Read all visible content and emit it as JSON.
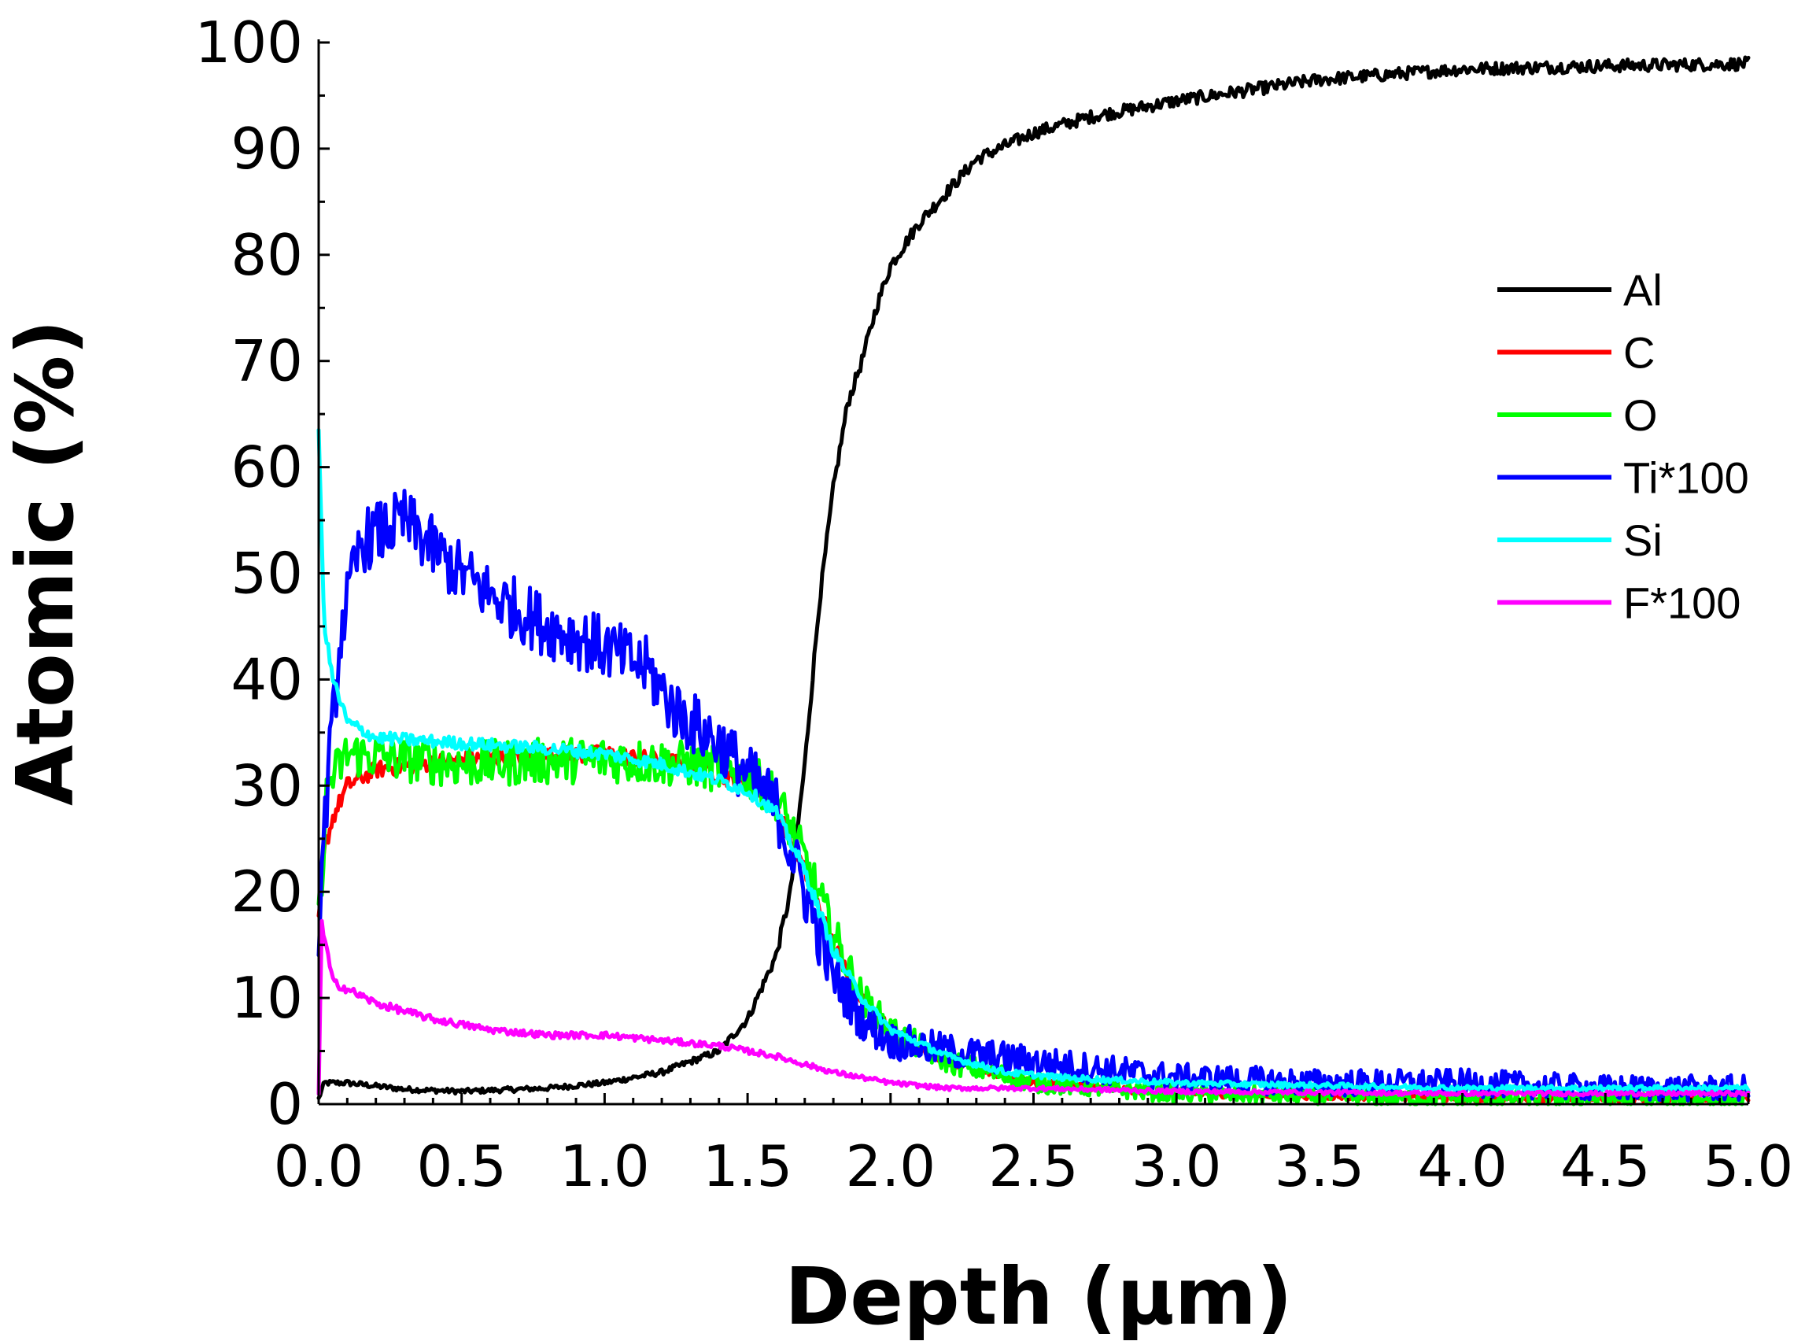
{
  "chart_data": {
    "type": "line",
    "xlabel": "Depth (μm)",
    "ylabel": "Atomic (%)",
    "xlim": [
      0.0,
      5.0
    ],
    "ylim": [
      0,
      100
    ],
    "x_ticks": [
      "0.0",
      "0.5",
      "1.0",
      "1.5",
      "2.0",
      "2.5",
      "3.0",
      "3.5",
      "4.0",
      "4.5",
      "5.0"
    ],
    "y_ticks": [
      "0",
      "10",
      "20",
      "30",
      "40",
      "50",
      "60",
      "70",
      "80",
      "90",
      "100"
    ],
    "x_tick_values": [
      0.0,
      0.5,
      1.0,
      1.5,
      2.0,
      2.5,
      3.0,
      3.5,
      4.0,
      4.5,
      5.0
    ],
    "y_tick_values": [
      0,
      10,
      20,
      30,
      40,
      50,
      60,
      70,
      80,
      90,
      100
    ],
    "legend_position": "right",
    "series": [
      {
        "name": "Al",
        "color": "#000000",
        "noise": 0.6,
        "points": [
          [
            0.0,
            0.5
          ],
          [
            0.02,
            2.0
          ],
          [
            0.1,
            2.0
          ],
          [
            0.3,
            1.4
          ],
          [
            0.5,
            1.2
          ],
          [
            0.8,
            1.5
          ],
          [
            1.0,
            2.0
          ],
          [
            1.2,
            3.0
          ],
          [
            1.4,
            5.0
          ],
          [
            1.5,
            8.0
          ],
          [
            1.6,
            14.0
          ],
          [
            1.65,
            20.0
          ],
          [
            1.7,
            32.0
          ],
          [
            1.75,
            47.0
          ],
          [
            1.8,
            58.0
          ],
          [
            1.85,
            66.0
          ],
          [
            1.9,
            70.0
          ],
          [
            1.95,
            75.0
          ],
          [
            2.0,
            79.0
          ],
          [
            2.1,
            83.0
          ],
          [
            2.2,
            86.0
          ],
          [
            2.3,
            89.0
          ],
          [
            2.5,
            91.5
          ],
          [
            2.7,
            93.0
          ],
          [
            3.0,
            94.5
          ],
          [
            3.5,
            96.5
          ],
          [
            4.0,
            97.5
          ],
          [
            4.5,
            97.8
          ],
          [
            5.0,
            98.0
          ]
        ]
      },
      {
        "name": "C",
        "color": "#ff0000",
        "noise": 0.8,
        "points": [
          [
            0.0,
            17.0
          ],
          [
            0.02,
            24.0
          ],
          [
            0.05,
            27.0
          ],
          [
            0.1,
            30.0
          ],
          [
            0.2,
            31.5
          ],
          [
            0.5,
            32.5
          ],
          [
            1.0,
            33.0
          ],
          [
            1.3,
            32.0
          ],
          [
            1.5,
            30.0
          ],
          [
            1.6,
            28.0
          ],
          [
            1.7,
            22.0
          ],
          [
            1.8,
            15.0
          ],
          [
            1.9,
            10.0
          ],
          [
            2.0,
            7.0
          ],
          [
            2.2,
            4.0
          ],
          [
            2.5,
            2.0
          ],
          [
            3.0,
            1.0
          ],
          [
            4.0,
            0.5
          ],
          [
            5.0,
            0.5
          ]
        ]
      },
      {
        "name": "O",
        "color": "#00ff00",
        "noise": 2.2,
        "points": [
          [
            0.0,
            17.0
          ],
          [
            0.03,
            30.0
          ],
          [
            0.1,
            33.0
          ],
          [
            0.5,
            32.0
          ],
          [
            1.0,
            32.5
          ],
          [
            1.3,
            32.0
          ],
          [
            1.5,
            31.0
          ],
          [
            1.6,
            29.0
          ],
          [
            1.7,
            23.0
          ],
          [
            1.8,
            16.0
          ],
          [
            1.9,
            10.0
          ],
          [
            2.0,
            7.0
          ],
          [
            2.2,
            4.0
          ],
          [
            2.5,
            2.0
          ],
          [
            3.0,
            1.0
          ],
          [
            4.0,
            0.5
          ],
          [
            5.0,
            0.5
          ]
        ]
      },
      {
        "name": "Ti*100",
        "color": "#0000ff",
        "noise": 3.0,
        "points": [
          [
            0.0,
            17.0
          ],
          [
            0.03,
            30.0
          ],
          [
            0.08,
            45.0
          ],
          [
            0.15,
            53.0
          ],
          [
            0.3,
            55.0
          ],
          [
            0.45,
            51.0
          ],
          [
            0.6,
            48.0
          ],
          [
            0.8,
            45.0
          ],
          [
            1.0,
            43.0
          ],
          [
            1.15,
            41.0
          ],
          [
            1.25,
            37.0
          ],
          [
            1.4,
            34.0
          ],
          [
            1.5,
            31.0
          ],
          [
            1.6,
            28.0
          ],
          [
            1.7,
            20.0
          ],
          [
            1.8,
            12.0
          ],
          [
            1.9,
            8.0
          ],
          [
            2.0,
            6.0
          ],
          [
            2.2,
            5.0
          ],
          [
            2.5,
            4.0
          ],
          [
            3.0,
            2.5
          ],
          [
            3.5,
            2.0
          ],
          [
            4.0,
            2.0
          ],
          [
            4.5,
            1.5
          ],
          [
            5.0,
            1.5
          ]
        ]
      },
      {
        "name": "Si",
        "color": "#00ffff",
        "noise": 0.6,
        "points": [
          [
            0.0,
            63.0
          ],
          [
            0.02,
            45.0
          ],
          [
            0.05,
            40.0
          ],
          [
            0.1,
            36.0
          ],
          [
            0.2,
            34.5
          ],
          [
            0.5,
            34.0
          ],
          [
            0.8,
            33.5
          ],
          [
            1.0,
            33.0
          ],
          [
            1.2,
            32.0
          ],
          [
            1.4,
            30.5
          ],
          [
            1.5,
            29.5
          ],
          [
            1.6,
            27.5
          ],
          [
            1.7,
            22.0
          ],
          [
            1.8,
            14.5
          ],
          [
            1.9,
            10.0
          ],
          [
            2.0,
            7.0
          ],
          [
            2.2,
            4.5
          ],
          [
            2.4,
            3.0
          ],
          [
            2.6,
            2.5
          ],
          [
            3.0,
            2.0
          ],
          [
            4.0,
            1.5
          ],
          [
            5.0,
            1.5
          ]
        ]
      },
      {
        "name": "F*100",
        "color": "#ff00ff",
        "noise": 0.5,
        "points": [
          [
            0.0,
            1.0
          ],
          [
            0.01,
            17.0
          ],
          [
            0.05,
            11.5
          ],
          [
            0.2,
            9.5
          ],
          [
            0.4,
            8.0
          ],
          [
            0.6,
            7.0
          ],
          [
            0.8,
            6.5
          ],
          [
            1.0,
            6.5
          ],
          [
            1.2,
            6.0
          ],
          [
            1.4,
            5.5
          ],
          [
            1.5,
            5.0
          ],
          [
            1.6,
            4.5
          ],
          [
            1.8,
            3.0
          ],
          [
            2.0,
            2.0
          ],
          [
            2.2,
            1.5
          ],
          [
            2.5,
            1.5
          ],
          [
            3.0,
            1.2
          ],
          [
            4.0,
            1.0
          ],
          [
            5.0,
            1.0
          ]
        ]
      }
    ]
  }
}
